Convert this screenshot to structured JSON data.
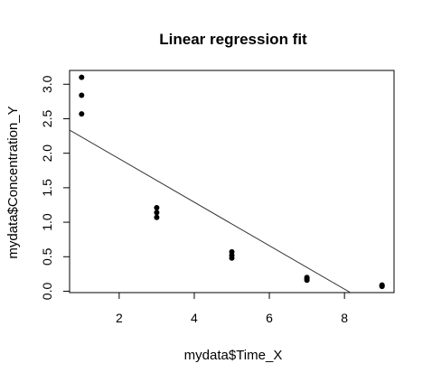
{
  "chart_data": {
    "type": "scatter",
    "title": "Linear regression fit",
    "xlabel": "mydata$Time_X",
    "ylabel": "mydata$Concentration_Y",
    "xlim": [
      0.68,
      9.32
    ],
    "ylim": [
      -0.02,
      3.2
    ],
    "x_ticks": [
      2,
      4,
      6,
      8
    ],
    "y_ticks": [
      0.0,
      0.5,
      1.0,
      1.5,
      2.0,
      2.5,
      3.0
    ],
    "x_tick_labels": [
      "2",
      "4",
      "6",
      "8"
    ],
    "y_tick_labels": [
      "0.0",
      "0.5",
      "1.0",
      "1.5",
      "2.0",
      "2.5",
      "3.0"
    ],
    "grid": false,
    "legend": "none",
    "points": [
      {
        "x": 1,
        "y": 3.1
      },
      {
        "x": 1,
        "y": 2.84
      },
      {
        "x": 1,
        "y": 2.57
      },
      {
        "x": 3,
        "y": 1.21
      },
      {
        "x": 3,
        "y": 1.14
      },
      {
        "x": 3,
        "y": 1.07
      },
      {
        "x": 5,
        "y": 0.57
      },
      {
        "x": 5,
        "y": 0.52
      },
      {
        "x": 5,
        "y": 0.48
      },
      {
        "x": 7,
        "y": 0.2
      },
      {
        "x": 7,
        "y": 0.18
      },
      {
        "x": 7,
        "y": 0.16
      },
      {
        "x": 9,
        "y": 0.09
      },
      {
        "x": 9,
        "y": 0.08
      },
      {
        "x": 9,
        "y": 0.07
      }
    ],
    "fit_line": {
      "intercept": 2.55,
      "slope": -0.315
    },
    "colors": {
      "points": "#000000",
      "fit_line": "#333333",
      "frame": "#000000"
    }
  }
}
